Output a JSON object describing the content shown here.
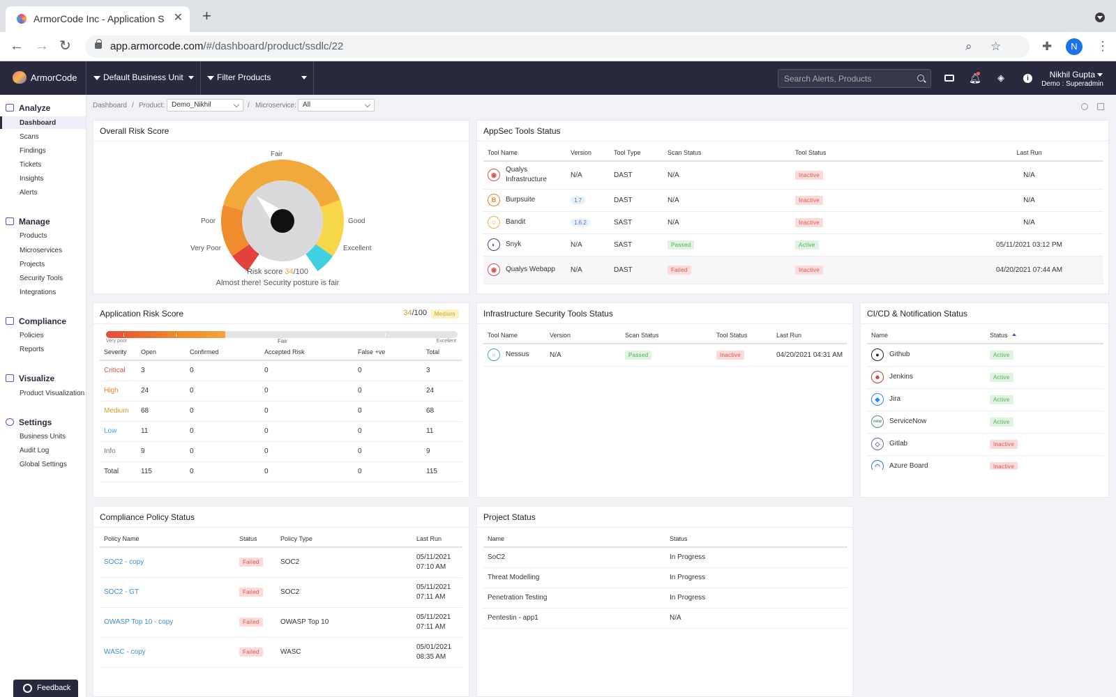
{
  "browser": {
    "tab_title": "ArmorCode Inc - Application S",
    "url_host": "app.armorcode.com",
    "url_path": "/#/dashboard/product/ssdlc/22",
    "profile_initial": "N"
  },
  "header": {
    "logo_text": "ArmorCode",
    "business_unit": "Default Business Unit",
    "filter_products": "Filter Products",
    "search_placeholder": "Search Alerts, Products",
    "user_name": "Nikhil Gupta",
    "user_role": "Demo : Superadmin"
  },
  "sidebar": {
    "sections": [
      {
        "label": "Analyze",
        "items": [
          "Dashboard",
          "Scans",
          "Findings",
          "Tickets",
          "Insights",
          "Alerts"
        ]
      },
      {
        "label": "Manage",
        "items": [
          "Products",
          "Microservices",
          "Projects",
          "Security Tools",
          "Integrations"
        ]
      },
      {
        "label": "Compliance",
        "items": [
          "Policies",
          "Reports"
        ]
      },
      {
        "label": "Visualize",
        "items": [
          "Product Visualization"
        ]
      },
      {
        "label": "Settings",
        "items": [
          "Business Units",
          "Audit Log",
          "Global Settings"
        ]
      }
    ],
    "active_item": "Dashboard",
    "feedback_label": "Feedback"
  },
  "breadcrumb": {
    "root": "Dashboard",
    "sep": "/",
    "product_label": "Product:",
    "product_value": "Demo_Nikhil",
    "microservice_label": "Microservice:",
    "microservice_value": "All"
  },
  "overall_risk": {
    "title": "Overall Risk Score",
    "labels": {
      "fair": "Fair",
      "poor": "Poor",
      "good": "Good",
      "very_poor": "Very Poor",
      "excellent": "Excellent"
    },
    "score_prefix": "Risk score ",
    "score": "34",
    "score_max": "/100",
    "score_value": 34,
    "message": "Almost there! Security posture is fair"
  },
  "appsec": {
    "title": "AppSec Tools Status",
    "columns": [
      "Tool Name",
      "Version",
      "Tool Type",
      "Scan Status",
      "Tool Status",
      "Last Run"
    ],
    "rows": [
      {
        "name": "Qualys Infrastructure",
        "icon": "qualys-icon",
        "version": "N/A",
        "type": "DAST",
        "scan": "N/A",
        "status": "Inactive",
        "last_run": "N/A"
      },
      {
        "name": "Burpsuite",
        "icon": "burpsuite-icon",
        "version": "1.7",
        "type": "DAST",
        "scan": "N/A",
        "status": "Inactive",
        "last_run": "N/A"
      },
      {
        "name": "Bandit",
        "icon": "bandit-icon",
        "version": "1.6.2",
        "type": "SAST",
        "scan": "N/A",
        "status": "Inactive",
        "last_run": "N/A"
      },
      {
        "name": "Snyk",
        "icon": "snyk-icon",
        "version": "N/A",
        "type": "SAST",
        "scan": "Passed",
        "status": "Active",
        "last_run": "05/11/2021 03:12 PM"
      },
      {
        "name": "Qualys Webapp",
        "icon": "qualys-icon",
        "version": "N/A",
        "type": "DAST",
        "scan": "Failed",
        "status": "Inactive",
        "last_run": "04/20/2021 07:44 AM"
      }
    ]
  },
  "app_risk": {
    "title": "Application Risk Score",
    "score": "34",
    "score_max": "/100",
    "level": "Medium",
    "bar_fraction": 0.34,
    "bar_labels": {
      "left": "Very poor",
      "mid": "Fair",
      "right": "Excellent"
    },
    "columns": [
      "Severity",
      "Open",
      "Confirmed",
      "Accepted Risk",
      "False +ve",
      "Total"
    ],
    "rows": [
      {
        "severity": "Critical",
        "color": "#d9534f",
        "open": "3",
        "confirmed": "0",
        "accepted": "0",
        "false_pos": "0",
        "total": "3"
      },
      {
        "severity": "High",
        "color": "#e8822a",
        "open": "24",
        "confirmed": "0",
        "accepted": "0",
        "false_pos": "0",
        "total": "24"
      },
      {
        "severity": "Medium",
        "color": "#c9a227",
        "open": "68",
        "confirmed": "0",
        "accepted": "0",
        "false_pos": "0",
        "total": "68"
      },
      {
        "severity": "Low",
        "color": "#3aa7e0",
        "open": "11",
        "confirmed": "0",
        "accepted": "0",
        "false_pos": "0",
        "total": "11"
      },
      {
        "severity": "Info",
        "color": "#777777",
        "open": "9",
        "confirmed": "0",
        "accepted": "0",
        "false_pos": "0",
        "total": "9"
      },
      {
        "severity": "Total",
        "color": "#333333",
        "open": "115",
        "confirmed": "0",
        "accepted": "0",
        "false_pos": "0",
        "total": "115"
      }
    ]
  },
  "infra": {
    "title": "Infrastructure Security Tools Status",
    "columns": [
      "Tool Name",
      "Version",
      "Scan Status",
      "Tool Status",
      "Last Run"
    ],
    "rows": [
      {
        "name": "Nessus",
        "icon": "nessus-icon",
        "version": "N/A",
        "scan": "Passed",
        "status": "Inactive",
        "last_run": "04/20/2021 04:31 AM"
      }
    ]
  },
  "cicd": {
    "title": "CI/CD & Notification Status",
    "columns": [
      "Name",
      "Status"
    ],
    "rows": [
      {
        "name": "Github",
        "icon": "github-icon",
        "status": "Active"
      },
      {
        "name": "Jenkins",
        "icon": "jenkins-icon",
        "status": "Active"
      },
      {
        "name": "Jira",
        "icon": "jira-icon",
        "status": "Active"
      },
      {
        "name": "ServiceNow",
        "icon": "servicenow-icon",
        "status": "Active"
      },
      {
        "name": "Gitlab",
        "icon": "gitlab-icon",
        "status": "Inactive"
      },
      {
        "name": "Azure Board",
        "icon": "azure-board-icon",
        "status": "Inactive"
      }
    ]
  },
  "compliance": {
    "title": "Compliance Policy Status",
    "columns": [
      "Policy Name",
      "Status",
      "Policy Type",
      "Last Run"
    ],
    "rows": [
      {
        "name": "SOC2 - copy",
        "status": "Failed",
        "type": "SOC2",
        "date": "05/11/2021",
        "time": "07:10 AM"
      },
      {
        "name": "SOC2 - GT",
        "status": "Failed",
        "type": "SOC2",
        "date": "05/11/2021",
        "time": "07:11 AM"
      },
      {
        "name": "OWASP Top 10 - copy",
        "status": "Failed",
        "type": "OWASP Top 10",
        "date": "05/11/2021",
        "time": "07:11 AM"
      },
      {
        "name": "WASC - copy",
        "status": "Failed",
        "type": "WASC",
        "date": "05/01/2021",
        "time": "08:35 AM"
      }
    ]
  },
  "projects": {
    "title": "Project Status",
    "columns": [
      "Name",
      "Status"
    ],
    "rows": [
      {
        "name": "SoC2",
        "status": "In Progress"
      },
      {
        "name": "Threat Modelling",
        "status": "In Progress"
      },
      {
        "name": "Penetration Testing",
        "status": "In Progress"
      },
      {
        "name": "Pentestin - app1",
        "status": "N/A"
      }
    ]
  },
  "colors": {
    "brand_dark": "#2a2a3e",
    "accent": "#5a4fcf",
    "danger": "#d9534f",
    "success": "#4caf50",
    "warning": "#e9a23b"
  }
}
